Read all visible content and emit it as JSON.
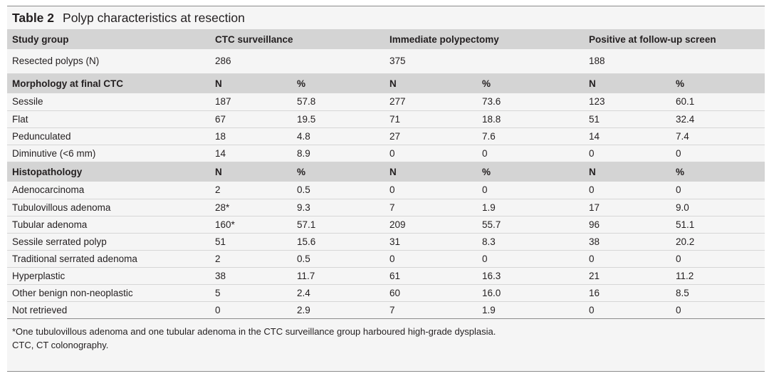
{
  "caption": {
    "number": "Table 2",
    "title": "Polyp characteristics at resection"
  },
  "header": {
    "label": "Study group",
    "groups": [
      "CTC surveillance",
      "Immediate polypectomy",
      "Positive at follow-up screen"
    ]
  },
  "resected": {
    "label": "Resected polyps (N)",
    "values": [
      "286",
      "375",
      "188"
    ]
  },
  "sections": [
    {
      "title": "Morphology at final CTC",
      "columns": [
        "N",
        "%",
        "N",
        "%",
        "N",
        "%"
      ],
      "rows": [
        {
          "label": "Sessile",
          "values": [
            "187",
            "57.8",
            "277",
            "73.6",
            "123",
            "60.1"
          ]
        },
        {
          "label": "Flat",
          "values": [
            "67",
            "19.5",
            "71",
            "18.8",
            "51",
            "32.4"
          ]
        },
        {
          "label": "Pedunculated",
          "values": [
            "18",
            "4.8",
            "27",
            "7.6",
            "14",
            "7.4"
          ]
        },
        {
          "label": "Diminutive (<6 mm)",
          "values": [
            "14",
            "8.9",
            "0",
            "0",
            "0",
            "0"
          ]
        }
      ]
    },
    {
      "title": "Histopathology",
      "columns": [
        "N",
        "%",
        "N",
        "%",
        "N",
        "%"
      ],
      "rows": [
        {
          "label": "Adenocarcinoma",
          "values": [
            "2",
            "0.5",
            "0",
            "0",
            "0",
            "0"
          ]
        },
        {
          "label": "Tubulovillous adenoma",
          "values": [
            "28*",
            "9.3",
            "7",
            "1.9",
            "17",
            "9.0"
          ]
        },
        {
          "label": "Tubular adenoma",
          "values": [
            "160*",
            "57.1",
            "209",
            "55.7",
            "96",
            "51.1"
          ]
        },
        {
          "label": "Sessile serrated polyp",
          "values": [
            "51",
            "15.6",
            "31",
            "8.3",
            "38",
            "20.2"
          ]
        },
        {
          "label": "Traditional serrated adenoma",
          "values": [
            "2",
            "0.5",
            "0",
            "0",
            "0",
            "0"
          ]
        },
        {
          "label": "Hyperplastic",
          "values": [
            "38",
            "11.7",
            "61",
            "16.3",
            "21",
            "11.2"
          ]
        },
        {
          "label": "Other benign non-neoplastic",
          "values": [
            "5",
            "2.4",
            "60",
            "16.0",
            "16",
            "8.5"
          ]
        },
        {
          "label": "Not retrieved",
          "values": [
            "0",
            "2.9",
            "7",
            "1.9",
            "0",
            "0"
          ]
        }
      ]
    }
  ],
  "footnotes": [
    "*One tubulovillous adenoma and one tubular adenoma in the CTC surveillance group harboured high-grade dysplasia.",
    "CTC, CT colonography."
  ]
}
